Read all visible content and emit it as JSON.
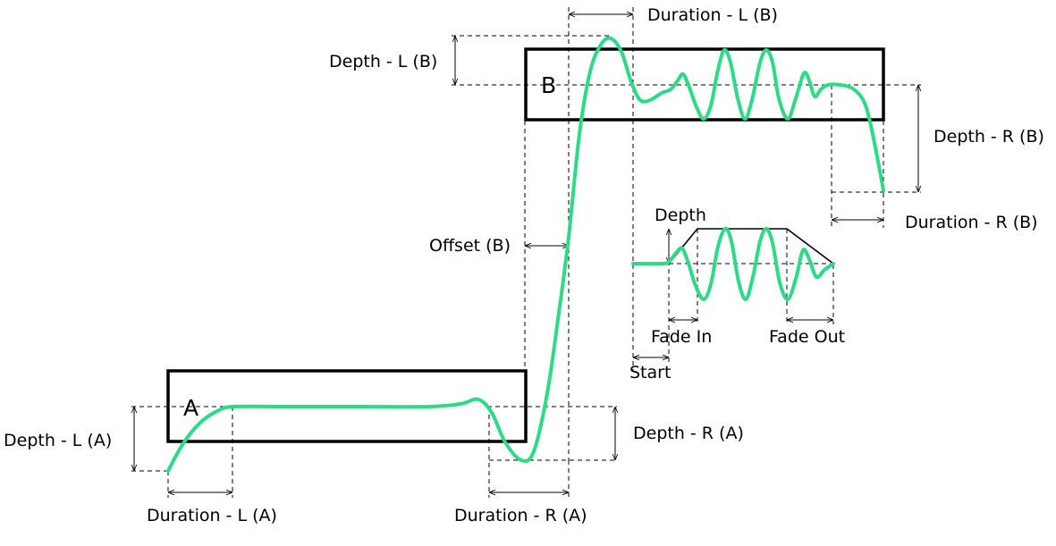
{
  "boxes": {
    "a_label": "A",
    "b_label": "B"
  },
  "labels": {
    "duration_l_a": "Duration - L (A)",
    "duration_r_a": "Duration - R (A)",
    "depth_l_a": "Depth - L (A)",
    "depth_r_a": "Depth - R (A)",
    "duration_l_b": "Duration - L (B)",
    "duration_r_b": "Duration - R (B)",
    "depth_l_b": "Depth - L (B)",
    "depth_r_b": "Depth - R (B)",
    "offset_b": "Offset (B)",
    "depth": "Depth",
    "fade_in": "Fade In",
    "fade_out": "Fade Out",
    "start": "Start"
  },
  "colors": {
    "curve": "#2bdc86",
    "lines": "#000000"
  }
}
